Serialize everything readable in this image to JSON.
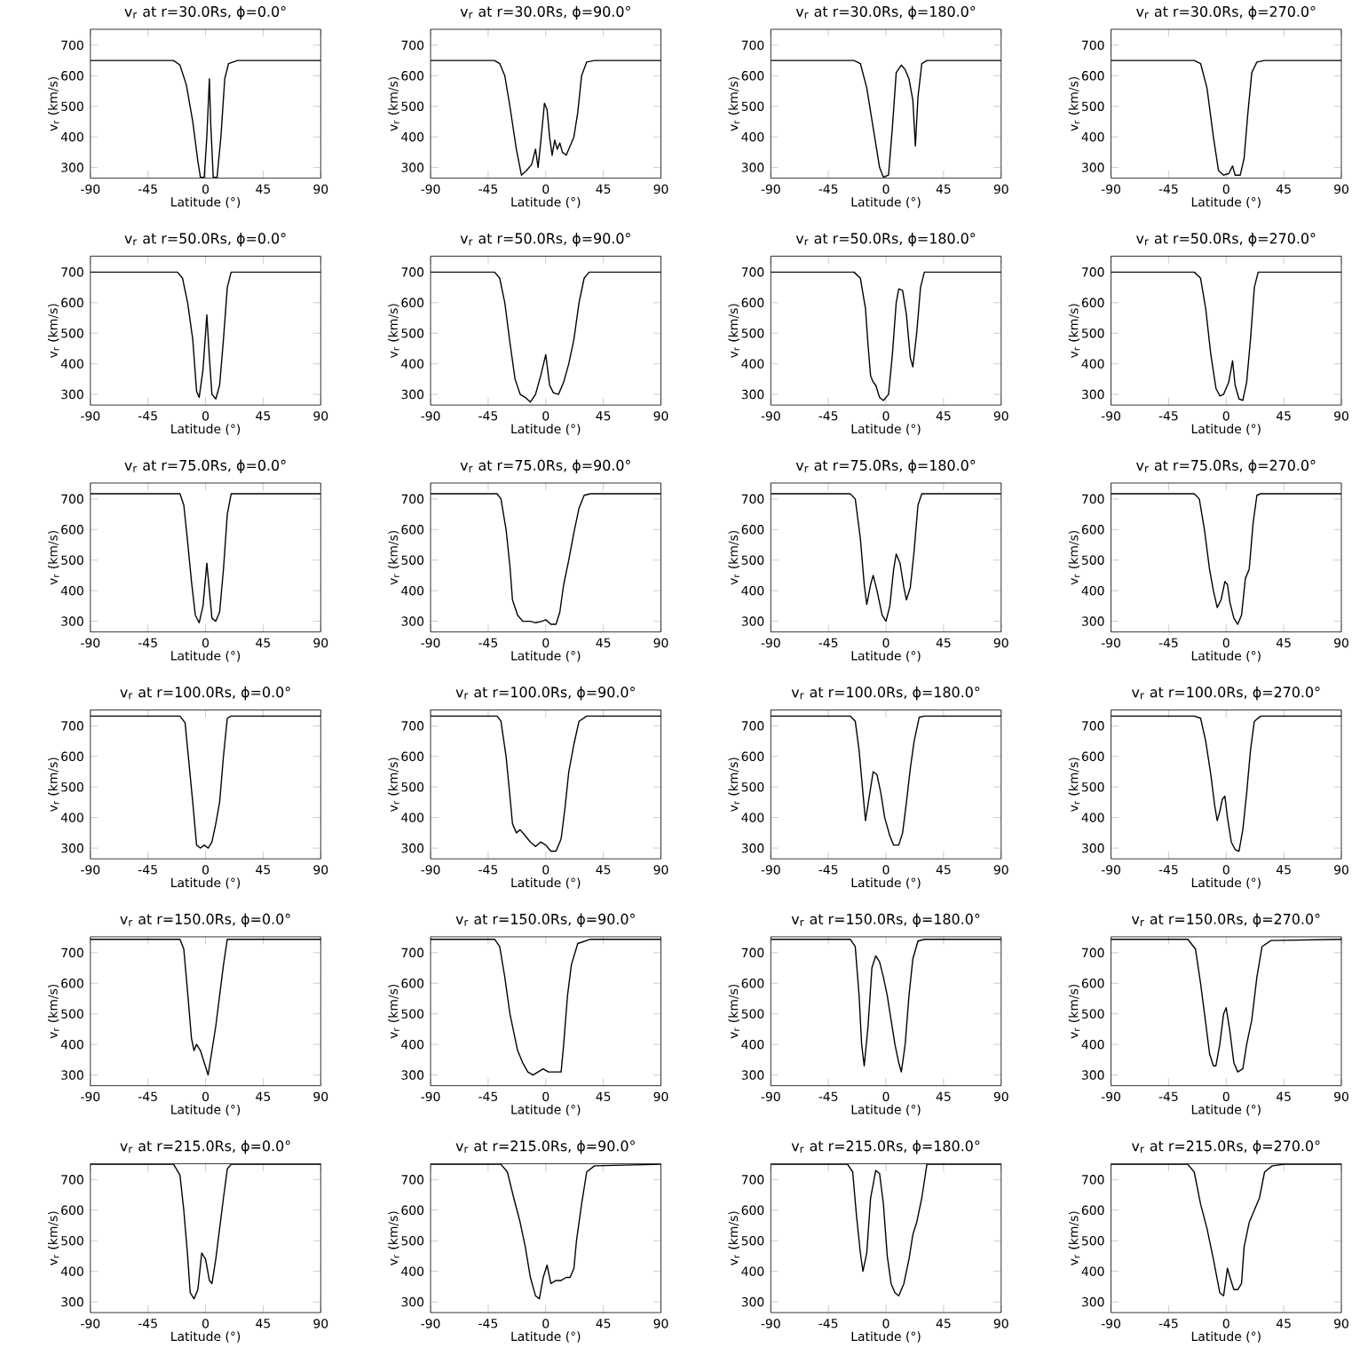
{
  "chart_data": [
    {
      "type": "line",
      "title": "v$_{r}$ at r=30.0Rs, ϕ=0.0°",
      "xlabel": "Latitude (°)",
      "ylabel": "v$_{r}$ (km/s)",
      "color": "#000000",
      "xlim": [
        -90,
        90
      ],
      "xticks": [
        -90,
        -45,
        0,
        45,
        90
      ],
      "ylim": [
        265,
        752
      ],
      "yticks": [
        300,
        400,
        500,
        600,
        700
      ],
      "x": [
        -90,
        -25,
        -20,
        -15,
        -10,
        -6,
        -4,
        -1,
        1,
        3,
        4,
        6,
        9,
        12,
        15,
        18,
        25,
        90
      ],
      "values": [
        650,
        650,
        635,
        570,
        450,
        320,
        268,
        268,
        400,
        590,
        450,
        268,
        268,
        400,
        590,
        640,
        650,
        650
      ]
    },
    {
      "type": "line",
      "title": "v$_{r}$ at r=30.0Rs, ϕ=90.0°",
      "xlabel": "Latitude (°)",
      "ylabel": "v$_{r}$ (km/s)",
      "color": "#000000",
      "xlim": [
        -90,
        90
      ],
      "xticks": [
        -90,
        -45,
        0,
        45,
        90
      ],
      "ylim": [
        265,
        752
      ],
      "yticks": [
        300,
        400,
        500,
        600,
        700
      ],
      "x": [
        -90,
        -40,
        -36,
        -32,
        -28,
        -23,
        -19,
        -15,
        -11,
        -8,
        -6,
        -4,
        -1,
        1,
        3,
        5,
        7,
        9,
        11,
        13,
        16,
        19,
        22,
        25,
        28,
        32,
        38,
        90
      ],
      "values": [
        650,
        650,
        640,
        600,
        500,
        360,
        275,
        290,
        310,
        360,
        300,
        380,
        510,
        490,
        400,
        340,
        390,
        360,
        380,
        350,
        340,
        370,
        400,
        480,
        600,
        645,
        650,
        650
      ]
    },
    {
      "type": "line",
      "title": "v$_{r}$ at r=30.0Rs, ϕ=180.0°",
      "xlabel": "Latitude (°)",
      "ylabel": "v$_{r}$ (km/s)",
      "color": "#000000",
      "xlim": [
        -90,
        90
      ],
      "xticks": [
        -90,
        -45,
        0,
        45,
        90
      ],
      "ylim": [
        265,
        752
      ],
      "yticks": [
        300,
        400,
        500,
        600,
        700
      ],
      "x": [
        -90,
        -25,
        -20,
        -15,
        -10,
        -5,
        -2,
        2,
        5,
        8,
        12,
        15,
        18,
        21,
        23,
        25,
        28,
        32,
        90
      ],
      "values": [
        650,
        650,
        640,
        560,
        430,
        300,
        268,
        275,
        430,
        610,
        635,
        620,
        590,
        520,
        370,
        530,
        640,
        650,
        650
      ]
    },
    {
      "type": "line",
      "title": "v$_{r}$ at r=30.0Rs, ϕ=270.0°",
      "xlabel": "Latitude (°)",
      "ylabel": "v$_{r}$ (km/s)",
      "color": "#000000",
      "xlim": [
        -90,
        90
      ],
      "xticks": [
        -90,
        -45,
        0,
        45,
        90
      ],
      "ylim": [
        265,
        752
      ],
      "yticks": [
        300,
        400,
        500,
        600,
        700
      ],
      "x": [
        -90,
        -25,
        -20,
        -15,
        -10,
        -6,
        -2,
        2,
        5,
        7,
        11,
        14,
        17,
        20,
        24,
        30,
        90
      ],
      "values": [
        650,
        650,
        640,
        560,
        400,
        290,
        275,
        280,
        305,
        275,
        275,
        330,
        480,
        610,
        645,
        650,
        650
      ]
    },
    {
      "type": "line",
      "title": "v$_{r}$ at r=50.0Rs, ϕ=0.0°",
      "xlabel": "Latitude (°)",
      "ylabel": "v$_{r}$ (km/s)",
      "color": "#000000",
      "xlim": [
        -90,
        90
      ],
      "xticks": [
        -90,
        -45,
        0,
        45,
        90
      ],
      "ylim": [
        265,
        752
      ],
      "yticks": [
        300,
        400,
        500,
        600,
        700
      ],
      "x": [
        -90,
        -22,
        -18,
        -14,
        -10,
        -7,
        -5,
        -2,
        1,
        3,
        5,
        8,
        11,
        14,
        17,
        20,
        90
      ],
      "values": [
        700,
        700,
        680,
        600,
        480,
        310,
        290,
        380,
        560,
        420,
        300,
        285,
        330,
        480,
        650,
        700,
        700
      ]
    },
    {
      "type": "line",
      "title": "v$_{r}$ at r=50.0Rs, ϕ=90.0°",
      "xlabel": "Latitude (°)",
      "ylabel": "v$_{r}$ (km/s)",
      "color": "#000000",
      "xlim": [
        -90,
        90
      ],
      "xticks": [
        -90,
        -45,
        0,
        45,
        90
      ],
      "ylim": [
        265,
        752
      ],
      "yticks": [
        300,
        400,
        500,
        600,
        700
      ],
      "x": [
        -90,
        -40,
        -36,
        -32,
        -28,
        -24,
        -20,
        -16,
        -12,
        -8,
        -4,
        0,
        3,
        6,
        10,
        14,
        18,
        22,
        26,
        30,
        34,
        90
      ],
      "values": [
        700,
        700,
        680,
        600,
        470,
        350,
        300,
        290,
        275,
        300,
        360,
        430,
        330,
        305,
        300,
        340,
        400,
        480,
        600,
        680,
        700,
        700
      ]
    },
    {
      "type": "line",
      "title": "v$_{r}$ at r=50.0Rs, ϕ=180.0°",
      "xlabel": "Latitude (°)",
      "ylabel": "v$_{r}$ (km/s)",
      "color": "#000000",
      "xlim": [
        -90,
        90
      ],
      "xticks": [
        -90,
        -45,
        0,
        45,
        90
      ],
      "ylim": [
        265,
        752
      ],
      "yticks": [
        300,
        400,
        500,
        600,
        700
      ],
      "x": [
        -90,
        -25,
        -20,
        -16,
        -14,
        -12,
        -10,
        -8,
        -5,
        -2,
        2,
        5,
        8,
        10,
        13,
        16,
        19,
        21,
        24,
        27,
        30,
        90
      ],
      "values": [
        700,
        700,
        680,
        580,
        460,
        360,
        340,
        330,
        290,
        280,
        300,
        430,
        600,
        645,
        640,
        560,
        420,
        390,
        500,
        650,
        700,
        700
      ]
    },
    {
      "type": "line",
      "title": "v$_{r}$ at r=50.0Rs, ϕ=270.0°",
      "xlabel": "Latitude (°)",
      "ylabel": "v$_{r}$ (km/s)",
      "color": "#000000",
      "xlim": [
        -90,
        90
      ],
      "xticks": [
        -90,
        -45,
        0,
        45,
        90
      ],
      "ylim": [
        265,
        752
      ],
      "yticks": [
        300,
        400,
        500,
        600,
        700
      ],
      "x": [
        -90,
        -25,
        -20,
        -16,
        -12,
        -8,
        -5,
        -2,
        2,
        5,
        7,
        10,
        13,
        16,
        19,
        22,
        25,
        90
      ],
      "values": [
        700,
        700,
        680,
        580,
        430,
        320,
        295,
        300,
        340,
        410,
        330,
        285,
        280,
        340,
        480,
        650,
        700,
        700
      ]
    },
    {
      "type": "line",
      "title": "v$_{r}$ at r=75.0Rs, ϕ=0.0°",
      "xlabel": "Latitude (°)",
      "ylabel": "v$_{r}$ (km/s)",
      "color": "#000000",
      "xlim": [
        -90,
        90
      ],
      "xticks": [
        -90,
        -45,
        0,
        45,
        90
      ],
      "ylim": [
        265,
        752
      ],
      "yticks": [
        300,
        400,
        500,
        600,
        700
      ],
      "x": [
        -90,
        -20,
        -17,
        -14,
        -11,
        -8,
        -5,
        -2,
        1,
        3,
        5,
        8,
        11,
        14,
        17,
        20,
        90
      ],
      "values": [
        717,
        717,
        680,
        560,
        430,
        320,
        295,
        350,
        490,
        400,
        310,
        300,
        330,
        470,
        650,
        717,
        717
      ]
    },
    {
      "type": "line",
      "title": "v$_{r}$ at r=75.0Rs, ϕ=90.0°",
      "xlabel": "Latitude (°)",
      "ylabel": "v$_{r}$ (km/s)",
      "color": "#000000",
      "xlim": [
        -90,
        90
      ],
      "xticks": [
        -90,
        -45,
        0,
        45,
        90
      ],
      "ylim": [
        265,
        752
      ],
      "yticks": [
        300,
        400,
        500,
        600,
        700
      ],
      "x": [
        -90,
        -38,
        -35,
        -31,
        -28,
        -26,
        -22,
        -18,
        -12,
        -8,
        -3,
        0,
        4,
        8,
        11,
        14,
        18,
        22,
        26,
        30,
        35,
        90
      ],
      "values": [
        717,
        717,
        700,
        600,
        480,
        370,
        320,
        300,
        300,
        295,
        300,
        305,
        290,
        290,
        330,
        420,
        500,
        590,
        670,
        712,
        717,
        717
      ]
    },
    {
      "type": "line",
      "title": "v$_{r}$ at r=75.0Rs, ϕ=180.0°",
      "xlabel": "Latitude (°)",
      "ylabel": "v$_{r}$ (km/s)",
      "color": "#000000",
      "xlim": [
        -90,
        90
      ],
      "xticks": [
        -90,
        -45,
        0,
        45,
        90
      ],
      "ylim": [
        265,
        752
      ],
      "yticks": [
        300,
        400,
        500,
        600,
        700
      ],
      "x": [
        -90,
        -28,
        -24,
        -20,
        -17,
        -15,
        -12,
        -10,
        -7,
        -3,
        0,
        3,
        6,
        8,
        11,
        14,
        16,
        19,
        22,
        25,
        28,
        90
      ],
      "values": [
        717,
        717,
        700,
        570,
        420,
        355,
        420,
        450,
        400,
        320,
        300,
        350,
        470,
        520,
        490,
        410,
        370,
        410,
        530,
        680,
        717,
        717
      ]
    },
    {
      "type": "line",
      "title": "v$_{r}$ at r=75.0Rs, ϕ=270.0°",
      "xlabel": "Latitude (°)",
      "ylabel": "v$_{r}$ (km/s)",
      "color": "#000000",
      "xlim": [
        -90,
        90
      ],
      "xticks": [
        -90,
        -45,
        0,
        45,
        90
      ],
      "ylim": [
        265,
        752
      ],
      "yticks": [
        300,
        400,
        500,
        600,
        700
      ],
      "x": [
        -90,
        -25,
        -21,
        -17,
        -13,
        -10,
        -7,
        -4,
        -1,
        1,
        3,
        6,
        9,
        12,
        15,
        18,
        21,
        24,
        27,
        90
      ],
      "values": [
        717,
        717,
        700,
        600,
        470,
        400,
        345,
        370,
        430,
        420,
        360,
        310,
        290,
        320,
        440,
        470,
        620,
        712,
        717,
        717
      ]
    },
    {
      "type": "line",
      "title": "v$_{r}$ at r=100.0Rs, ϕ=0.0°",
      "xlabel": "Latitude (°)",
      "ylabel": "v$_{r}$ (km/s)",
      "color": "#000000",
      "xlim": [
        -90,
        90
      ],
      "xticks": [
        -90,
        -45,
        0,
        45,
        90
      ],
      "ylim": [
        265,
        752
      ],
      "yticks": [
        300,
        400,
        500,
        600,
        700
      ],
      "x": [
        -90,
        -20,
        -16,
        -13,
        -10,
        -7,
        -4,
        -1,
        2,
        5,
        8,
        11,
        14,
        17,
        20,
        90
      ],
      "values": [
        732,
        732,
        710,
        580,
        450,
        310,
        300,
        310,
        300,
        320,
        380,
        450,
        600,
        725,
        732,
        732
      ]
    },
    {
      "type": "line",
      "title": "v$_{r}$ at r=100.0Rs, ϕ=90.0°",
      "xlabel": "Latitude (°)",
      "ylabel": "v$_{r}$ (km/s)",
      "color": "#000000",
      "xlim": [
        -90,
        90
      ],
      "xticks": [
        -90,
        -45,
        0,
        45,
        90
      ],
      "ylim": [
        265,
        752
      ],
      "yticks": [
        300,
        400,
        500,
        600,
        700
      ],
      "x": [
        -90,
        -38,
        -35,
        -31,
        -28,
        -26,
        -23,
        -20,
        -16,
        -12,
        -8,
        -4,
        0,
        4,
        8,
        12,
        15,
        18,
        22,
        26,
        32,
        90
      ],
      "values": [
        732,
        732,
        715,
        600,
        470,
        380,
        350,
        360,
        340,
        320,
        305,
        320,
        310,
        290,
        290,
        330,
        430,
        550,
        640,
        715,
        732,
        732
      ]
    },
    {
      "type": "line",
      "title": "v$_{r}$ at r=100.0Rs, ϕ=180.0°",
      "xlabel": "Latitude (°)",
      "ylabel": "v$_{r}$ (km/s)",
      "color": "#000000",
      "xlim": [
        -90,
        90
      ],
      "xticks": [
        -90,
        -45,
        0,
        45,
        90
      ],
      "ylim": [
        265,
        752
      ],
      "yticks": [
        300,
        400,
        500,
        600,
        700
      ],
      "x": [
        -90,
        -28,
        -24,
        -21,
        -18,
        -16,
        -13,
        -10,
        -7,
        -4,
        -1,
        3,
        6,
        10,
        13,
        16,
        19,
        22,
        26,
        30,
        90
      ],
      "values": [
        732,
        732,
        715,
        620,
        480,
        390,
        470,
        550,
        540,
        480,
        400,
        340,
        310,
        310,
        350,
        450,
        560,
        650,
        728,
        732,
        732
      ]
    },
    {
      "type": "line",
      "title": "v$_{r}$ at r=100.0Rs, ϕ=270.0°",
      "xlabel": "Latitude (°)",
      "ylabel": "v$_{r}$ (km/s)",
      "color": "#000000",
      "xlim": [
        -90,
        90
      ],
      "xticks": [
        -90,
        -45,
        0,
        45,
        90
      ],
      "ylim": [
        265,
        752
      ],
      "yticks": [
        300,
        400,
        500,
        600,
        700
      ],
      "x": [
        -90,
        -25,
        -20,
        -16,
        -12,
        -9,
        -7,
        -5,
        -3,
        -1,
        1,
        4,
        7,
        10,
        13,
        16,
        19,
        22,
        27,
        90
      ],
      "values": [
        732,
        732,
        725,
        650,
        540,
        440,
        390,
        420,
        460,
        470,
        400,
        320,
        295,
        290,
        360,
        480,
        620,
        715,
        732,
        732
      ]
    },
    {
      "type": "line",
      "title": "v$_{r}$ at r=150.0Rs, ϕ=0.0°",
      "xlabel": "Latitude (°)",
      "ylabel": "v$_{r}$ (km/s)",
      "color": "#000000",
      "xlim": [
        -90,
        90
      ],
      "xticks": [
        -90,
        -45,
        0,
        45,
        90
      ],
      "ylim": [
        265,
        752
      ],
      "yticks": [
        300,
        400,
        500,
        600,
        700
      ],
      "x": [
        -90,
        -20,
        -17,
        -14,
        -11,
        -9,
        -7,
        -4,
        -1,
        2,
        5,
        8,
        11,
        14,
        17,
        90
      ],
      "values": [
        744,
        744,
        712,
        570,
        420,
        380,
        400,
        380,
        340,
        300,
        380,
        460,
        560,
        660,
        744,
        744
      ]
    },
    {
      "type": "line",
      "title": "v$_{r}$ at r=150.0Rs, ϕ=90.0°",
      "xlabel": "Latitude (°)",
      "ylabel": "v$_{r}$ (km/s)",
      "color": "#000000",
      "xlim": [
        -90,
        90
      ],
      "xticks": [
        -90,
        -45,
        0,
        45,
        90
      ],
      "ylim": [
        265,
        752
      ],
      "yticks": [
        300,
        400,
        500,
        600,
        700
      ],
      "x": [
        -90,
        -40,
        -36,
        -32,
        -28,
        -25,
        -22,
        -18,
        -14,
        -10,
        -6,
        -2,
        2,
        8,
        12,
        14,
        17,
        20,
        25,
        35,
        90
      ],
      "values": [
        744,
        744,
        720,
        620,
        500,
        440,
        380,
        340,
        310,
        300,
        310,
        320,
        310,
        310,
        310,
        400,
        560,
        660,
        730,
        744,
        744
      ]
    },
    {
      "type": "line",
      "title": "v$_{r}$ at r=150.0Rs, ϕ=180.0°",
      "xlabel": "Latitude (°)",
      "ylabel": "v$_{r}$ (km/s)",
      "color": "#000000",
      "xlim": [
        -90,
        90
      ],
      "xticks": [
        -90,
        -45,
        0,
        45,
        90
      ],
      "ylim": [
        265,
        752
      ],
      "yticks": [
        300,
        400,
        500,
        600,
        700
      ],
      "x": [
        -90,
        -28,
        -24,
        -21,
        -19,
        -17,
        -14,
        -11,
        -8,
        -5,
        -2,
        1,
        4,
        7,
        10,
        12,
        15,
        18,
        21,
        25,
        30,
        90
      ],
      "values": [
        744,
        744,
        720,
        560,
        400,
        330,
        460,
        650,
        690,
        670,
        620,
        560,
        480,
        400,
        340,
        310,
        400,
        560,
        680,
        738,
        744,
        744
      ]
    },
    {
      "type": "line",
      "title": "v$_{r}$ at r=150.0Rs, ϕ=270.0°",
      "xlabel": "Latitude (°)",
      "ylabel": "v$_{r}$ (km/s)",
      "color": "#000000",
      "xlim": [
        -90,
        90
      ],
      "xticks": [
        -90,
        -45,
        0,
        45,
        90
      ],
      "ylim": [
        265,
        752
      ],
      "yticks": [
        300,
        400,
        500,
        600,
        700
      ],
      "x": [
        -90,
        -30,
        -24,
        -20,
        -16,
        -13,
        -10,
        -8,
        -5,
        -2,
        0,
        3,
        6,
        9,
        13,
        16,
        20,
        24,
        28,
        35,
        90
      ],
      "values": [
        744,
        744,
        712,
        600,
        470,
        370,
        330,
        330,
        400,
        500,
        520,
        440,
        340,
        310,
        320,
        400,
        480,
        620,
        720,
        740,
        744
      ]
    },
    {
      "type": "line",
      "title": "v$_{r}$ at r=215.0Rs, ϕ=0.0°",
      "xlabel": "Latitude (°)",
      "ylabel": "v$_{r}$ (km/s)",
      "color": "#000000",
      "xlim": [
        -90,
        90
      ],
      "xticks": [
        -90,
        -45,
        0,
        45,
        90
      ],
      "ylim": [
        265,
        752
      ],
      "yticks": [
        300,
        400,
        500,
        600,
        700
      ],
      "x": [
        -90,
        -25,
        -20,
        -17,
        -14,
        -12,
        -9,
        -6,
        -3,
        0,
        3,
        5,
        8,
        11,
        14,
        17,
        20,
        90
      ],
      "values": [
        750,
        750,
        715,
        600,
        450,
        330,
        310,
        340,
        460,
        440,
        370,
        360,
        440,
        540,
        640,
        735,
        750,
        750
      ]
    },
    {
      "type": "line",
      "title": "v$_{r}$ at r=215.0Rs, ϕ=90.0°",
      "xlabel": "Latitude (°)",
      "ylabel": "v$_{r}$ (km/s)",
      "color": "#000000",
      "xlim": [
        -90,
        90
      ],
      "xticks": [
        -90,
        -45,
        0,
        45,
        90
      ],
      "ylim": [
        265,
        752
      ],
      "yticks": [
        300,
        400,
        500,
        600,
        700
      ],
      "x": [
        -90,
        -35,
        -30,
        -25,
        -20,
        -16,
        -12,
        -8,
        -5,
        -2,
        1,
        4,
        8,
        12,
        16,
        19,
        22,
        24,
        28,
        32,
        38,
        90
      ],
      "values": [
        750,
        750,
        725,
        640,
        560,
        480,
        380,
        320,
        310,
        380,
        420,
        360,
        370,
        370,
        380,
        380,
        410,
        500,
        620,
        725,
        745,
        750
      ]
    },
    {
      "type": "line",
      "title": "v$_{r}$ at r=215.0Rs, ϕ=180.0°",
      "xlabel": "Latitude (°)",
      "ylabel": "v$_{r}$ (km/s)",
      "color": "#000000",
      "xlim": [
        -90,
        90
      ],
      "xticks": [
        -90,
        -45,
        0,
        45,
        90
      ],
      "ylim": [
        265,
        752
      ],
      "yticks": [
        300,
        400,
        500,
        600,
        700
      ],
      "x": [
        -90,
        -30,
        -26,
        -23,
        -20,
        -18,
        -15,
        -12,
        -8,
        -5,
        -2,
        1,
        4,
        7,
        10,
        14,
        18,
        21,
        24,
        28,
        32,
        90
      ],
      "values": [
        750,
        750,
        725,
        580,
        460,
        400,
        460,
        640,
        730,
        720,
        620,
        450,
        360,
        330,
        320,
        360,
        440,
        520,
        560,
        640,
        750,
        750
      ]
    },
    {
      "type": "line",
      "title": "v$_{r}$ at r=215.0Rs, ϕ=270.0°",
      "xlabel": "Latitude (°)",
      "ylabel": "v$_{r}$ (km/s)",
      "color": "#000000",
      "xlim": [
        -90,
        90
      ],
      "xticks": [
        -90,
        -45,
        0,
        45,
        90
      ],
      "ylim": [
        265,
        752
      ],
      "yticks": [
        300,
        400,
        500,
        600,
        700
      ],
      "x": [
        -90,
        -30,
        -25,
        -20,
        -15,
        -10,
        -5,
        -2,
        1,
        3,
        6,
        9,
        12,
        14,
        18,
        22,
        26,
        30,
        36,
        45,
        90
      ],
      "values": [
        750,
        750,
        725,
        620,
        540,
        440,
        330,
        320,
        410,
        380,
        340,
        340,
        360,
        480,
        560,
        600,
        640,
        725,
        745,
        750,
        750
      ]
    }
  ]
}
